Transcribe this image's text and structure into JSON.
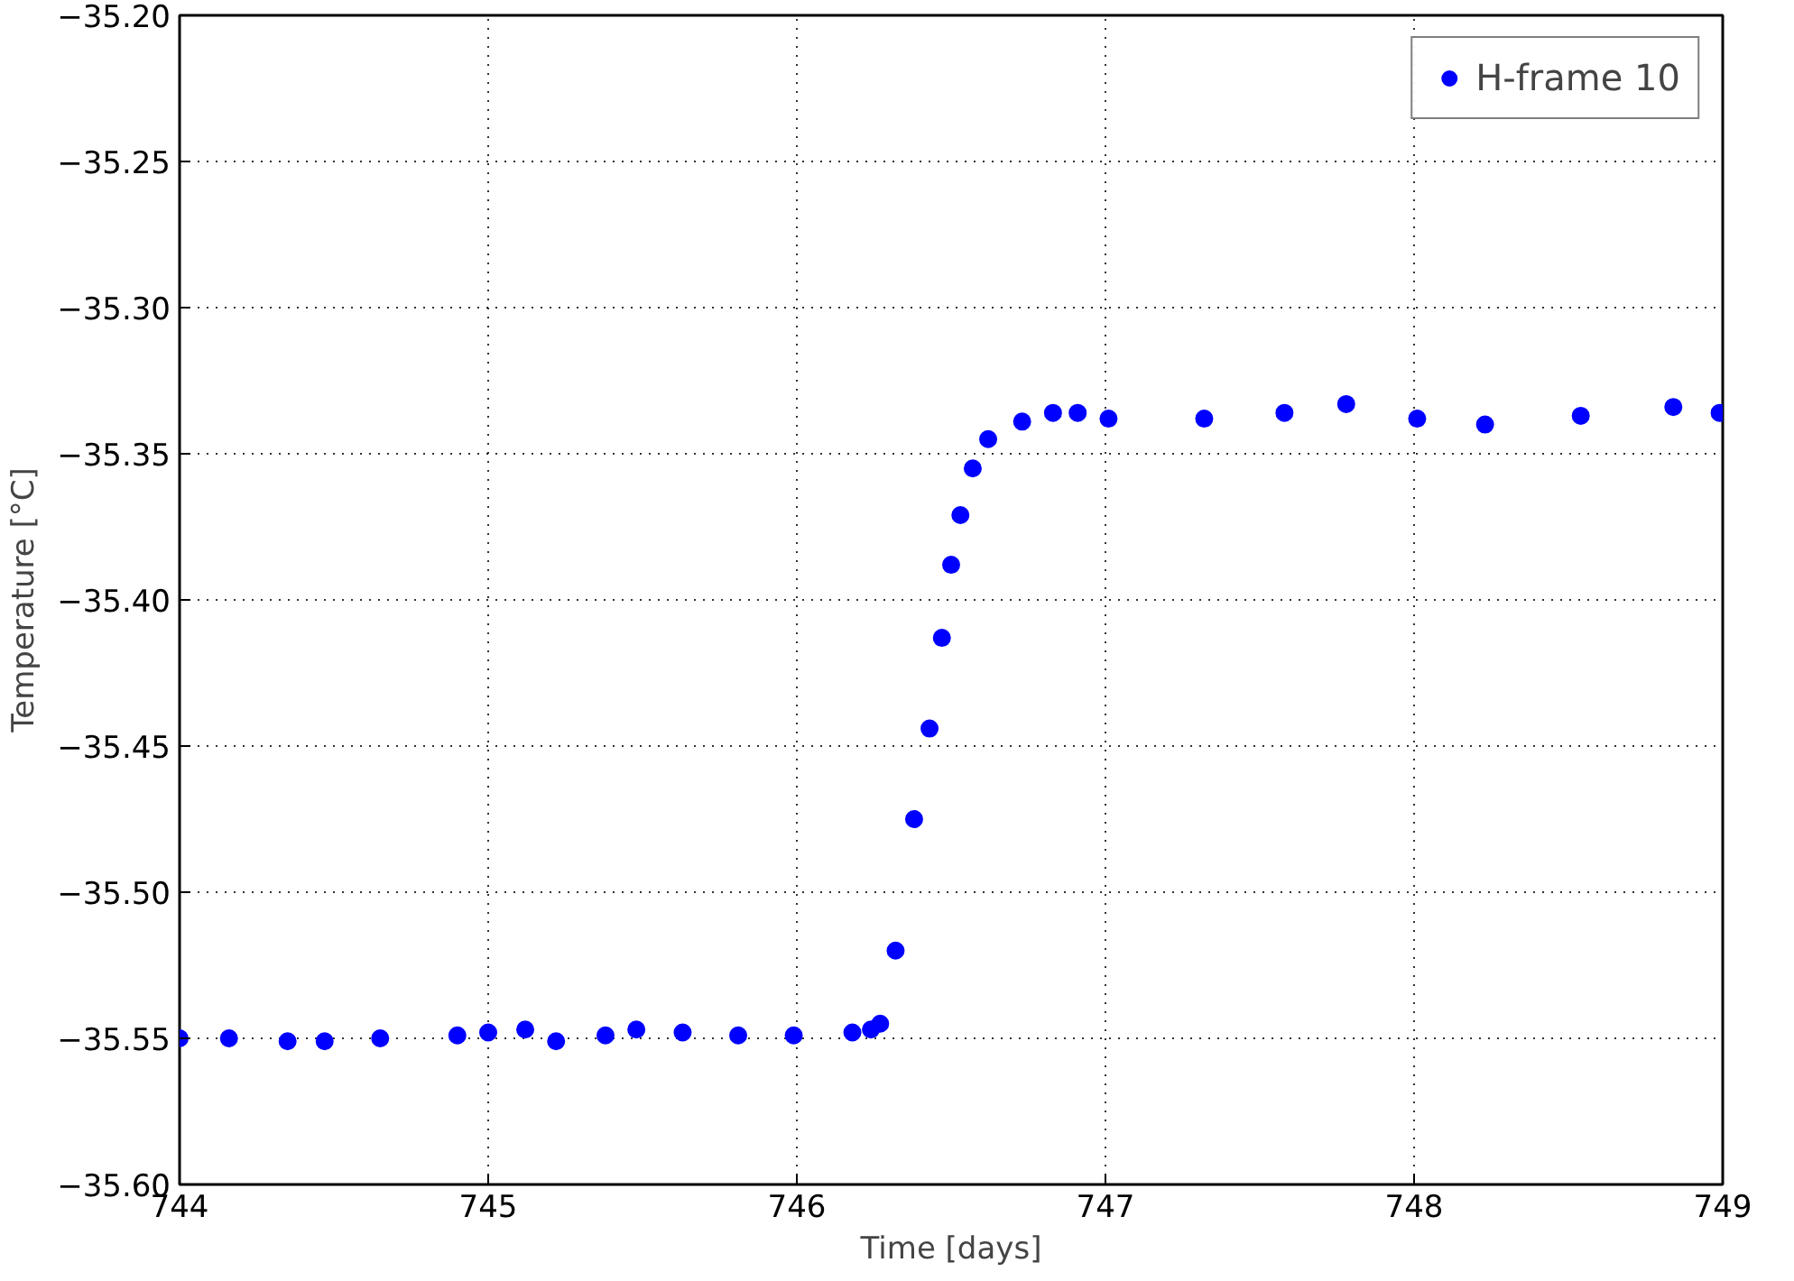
{
  "chart_data": {
    "type": "scatter",
    "xlabel": "Time [days]",
    "ylabel": "Temperature [°C]",
    "xlim": [
      744,
      749
    ],
    "xticks": [
      744,
      745,
      746,
      747,
      748,
      749
    ],
    "ylim": [
      -35.6,
      -35.2
    ],
    "yticks": [
      {
        "value": -35.6,
        "label": "−35.60"
      },
      {
        "value": -35.55,
        "label": "−35.55"
      },
      {
        "value": -35.5,
        "label": "−35.50"
      },
      {
        "value": -35.45,
        "label": "−35.45"
      },
      {
        "value": -35.4,
        "label": "−35.40"
      },
      {
        "value": -35.35,
        "label": "−35.35"
      },
      {
        "value": -35.3,
        "label": "−35.30"
      },
      {
        "value": -35.25,
        "label": "−35.25"
      },
      {
        "value": -35.2,
        "label": "−35.20"
      }
    ],
    "grid": true,
    "legend": "top right",
    "marker": "circle",
    "series": [
      {
        "name": "H-frame 10",
        "color": "#0000ff",
        "x": [
          744.0,
          744.16,
          744.35,
          744.47,
          744.65,
          744.9,
          745.0,
          745.12,
          745.22,
          745.38,
          745.48,
          745.63,
          745.81,
          745.99,
          746.18,
          746.24,
          746.27,
          746.32,
          746.38,
          746.43,
          746.47,
          746.5,
          746.53,
          746.57,
          746.62,
          746.73,
          746.83,
          746.91,
          747.01,
          747.32,
          747.58,
          747.78,
          748.01,
          748.23,
          748.54,
          748.84,
          748.99
        ],
        "values": [
          -35.55,
          -35.55,
          -35.551,
          -35.551,
          -35.55,
          -35.549,
          -35.548,
          -35.547,
          -35.551,
          -35.549,
          -35.547,
          -35.548,
          -35.549,
          -35.549,
          -35.548,
          -35.547,
          -35.545,
          -35.52,
          -35.475,
          -35.444,
          -35.413,
          -35.388,
          -35.371,
          -35.355,
          -35.345,
          -35.339,
          -35.336,
          -35.336,
          -35.338,
          -35.338,
          -35.336,
          -35.333,
          -35.338,
          -35.34,
          -35.337,
          -35.334,
          -35.336
        ]
      }
    ]
  }
}
